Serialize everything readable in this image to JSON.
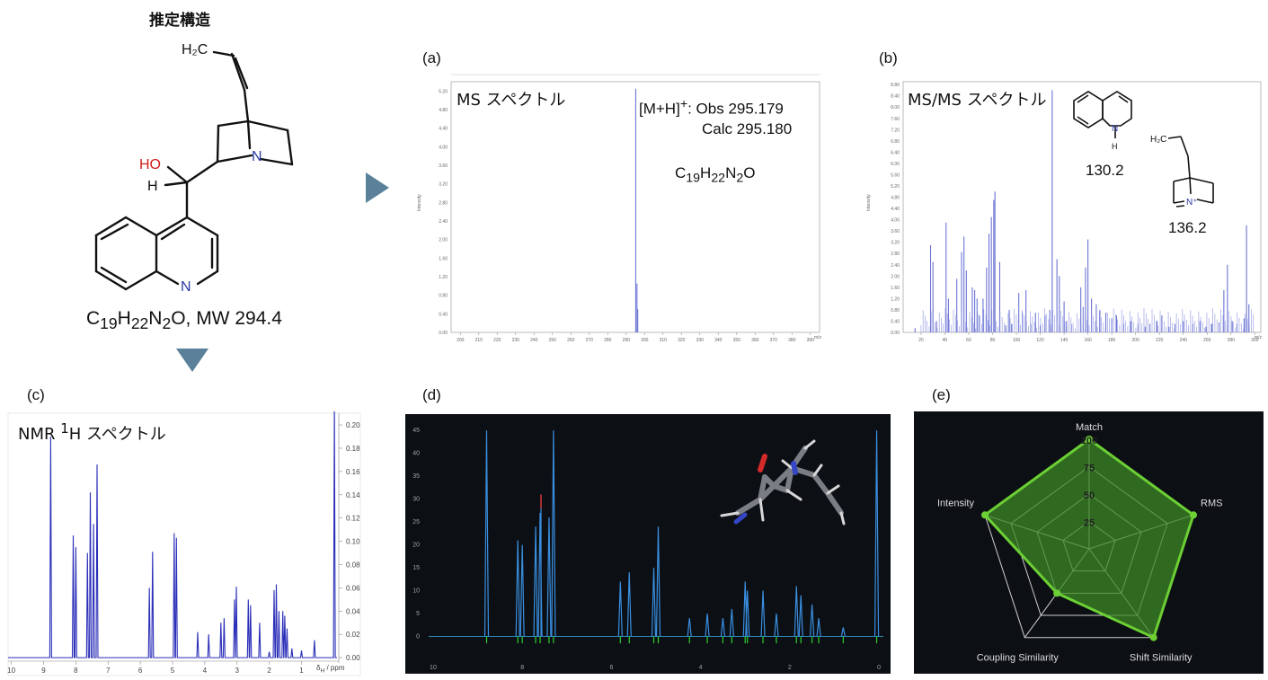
{
  "structure": {
    "title": "推定構造",
    "formula_html": "C<sub>19</sub>H<sub>22</sub>N<sub>2</sub>O, MW 294.4",
    "atoms": {
      "vinyl": "H₂C",
      "ho": "HO",
      "h": "H",
      "n_bicyclic": "N",
      "n_quinoline": "N"
    }
  },
  "panels": {
    "a": {
      "label": "(a)",
      "title": "MS スペクトル",
      "annotation_line1_html": "[M+H]<sup>+</sup>: Obs 295.179",
      "annotation_line2": "Calc 295.180",
      "formula_html": "C<sub>19</sub>H<sub>22</sub>N<sub>2</sub>O"
    },
    "b": {
      "label": "(b)",
      "title": "MS/MS スペクトル",
      "frag1": "130.2",
      "frag2": "136.2"
    },
    "c": {
      "label": "(c)",
      "title_html": "NMR <sup>1</sup>H スペクトル",
      "xaxis_unit": "δ<sub>H</sub> / ppm"
    },
    "d": {
      "label": "(d)"
    },
    "e": {
      "label": "(e)"
    }
  },
  "chart_data": [
    {
      "type": "bar",
      "name": "ms",
      "x": [
        294.5,
        295.2,
        295.9,
        296.3
      ],
      "values": [
        0.0,
        5.25,
        1.05,
        0.5
      ],
      "xticks": [
        200,
        210,
        220,
        230,
        240,
        250,
        260,
        270,
        280,
        290,
        300,
        310,
        320,
        330,
        340,
        350,
        360,
        370,
        380,
        390
      ],
      "xlim": [
        195,
        395
      ],
      "yticks": [
        "0.00",
        "0.40",
        "0.80",
        "1.20",
        "1.60",
        "2.00",
        "2.40",
        "2.80",
        "3.20",
        "3.60",
        "4.00",
        "4.40",
        "4.80",
        "5.20"
      ],
      "ylim": [
        0,
        5.4
      ],
      "ylabel": "Intensity",
      "xlabel": "m/z"
    },
    {
      "type": "bar",
      "name": "msms",
      "x": [
        15,
        28,
        30,
        33,
        41,
        43,
        50,
        54,
        56,
        58,
        63,
        65,
        67,
        69,
        72,
        75,
        77,
        79,
        81,
        82,
        86,
        91,
        94,
        96,
        102,
        105,
        108,
        112,
        116,
        120,
        124,
        128,
        130,
        134,
        136,
        140,
        142,
        146,
        154,
        156,
        158,
        160,
        163,
        167,
        170,
        175,
        180,
        184,
        190,
        196,
        202,
        208,
        212,
        218,
        222,
        228,
        233,
        240,
        248,
        254,
        259,
        264,
        270,
        274,
        277,
        281,
        285,
        291,
        293,
        295
      ],
      "values": [
        0.15,
        3.1,
        2.5,
        0.4,
        3.9,
        1.2,
        1.9,
        2.85,
        3.4,
        2.2,
        1.6,
        1.5,
        1.2,
        0.6,
        1.2,
        2.3,
        3.5,
        4.1,
        4.7,
        5.0,
        2.5,
        0.25,
        0.8,
        0.3,
        1.4,
        0.7,
        1.5,
        0.3,
        0.7,
        0.25,
        0.6,
        0.8,
        8.6,
        2.6,
        2.0,
        1.1,
        0.4,
        0.3,
        1.6,
        0.9,
        2.3,
        3.3,
        1.2,
        1.0,
        0.8,
        0.7,
        0.5,
        0.6,
        0.3,
        0.4,
        0.3,
        0.2,
        0.3,
        0.4,
        0.6,
        0.2,
        0.3,
        0.4,
        0.3,
        0.4,
        0.2,
        0.3,
        0.35,
        1.5,
        2.4,
        0.4,
        0.3,
        0.5,
        3.8,
        1.0
      ],
      "xticks": [
        20,
        40,
        60,
        80,
        100,
        120,
        140,
        160,
        180,
        200,
        220,
        240,
        260,
        280,
        300
      ],
      "xlim": [
        5,
        305
      ],
      "yticks": [
        "0.00",
        "0.40",
        "0.80",
        "1.20",
        "1.60",
        "2.00",
        "2.40",
        "2.80",
        "3.20",
        "3.60",
        "4.00",
        "4.40",
        "4.80",
        "5.20",
        "5.60",
        "6.00",
        "6.40",
        "6.80",
        "7.20",
        "7.60",
        "8.00",
        "8.40",
        "8.80"
      ],
      "ylim": [
        0,
        8.9
      ],
      "ylabel": "Intensity",
      "xlabel": "m/z"
    },
    {
      "type": "line",
      "name": "nmr",
      "peaks": [
        {
          "ppm": 8.78,
          "h": 0.19
        },
        {
          "ppm": 8.08,
          "h": 0.105
        },
        {
          "ppm": 8.0,
          "h": 0.095
        },
        {
          "ppm": 7.64,
          "h": 0.09
        },
        {
          "ppm": 7.55,
          "h": 0.142
        },
        {
          "ppm": 7.45,
          "h": 0.115
        },
        {
          "ppm": 7.34,
          "h": 0.166
        },
        {
          "ppm": 5.72,
          "h": 0.06
        },
        {
          "ppm": 5.62,
          "h": 0.091
        },
        {
          "ppm": 4.95,
          "h": 0.107
        },
        {
          "ppm": 4.88,
          "h": 0.103
        },
        {
          "ppm": 4.22,
          "h": 0.022
        },
        {
          "ppm": 3.88,
          "h": 0.02
        },
        {
          "ppm": 3.5,
          "h": 0.03
        },
        {
          "ppm": 3.4,
          "h": 0.034
        },
        {
          "ppm": 3.08,
          "h": 0.05
        },
        {
          "ppm": 3.02,
          "h": 0.061
        },
        {
          "ppm": 2.65,
          "h": 0.05
        },
        {
          "ppm": 2.58,
          "h": 0.045
        },
        {
          "ppm": 2.3,
          "h": 0.03
        },
        {
          "ppm": 2.0,
          "h": 0.005
        },
        {
          "ppm": 1.85,
          "h": 0.058
        },
        {
          "ppm": 1.78,
          "h": 0.063
        },
        {
          "ppm": 1.7,
          "h": 0.04
        },
        {
          "ppm": 1.58,
          "h": 0.04
        },
        {
          "ppm": 1.52,
          "h": 0.036
        },
        {
          "ppm": 1.45,
          "h": 0.025
        },
        {
          "ppm": 1.3,
          "h": 0.008
        },
        {
          "ppm": 1.0,
          "h": 0.006
        },
        {
          "ppm": 0.6,
          "h": 0.015
        },
        {
          "ppm": -0.02,
          "h": 0.22
        }
      ],
      "xticks": [
        10,
        9,
        8,
        7,
        6,
        5,
        4,
        3,
        2,
        1
      ],
      "xlim": [
        10.1,
        -0.1
      ],
      "yticks": [
        "0.00",
        "0.02",
        "0.04",
        "0.06",
        "0.08",
        "0.10",
        "0.12",
        "0.14",
        "0.16",
        "0.18",
        "0.20"
      ],
      "ylim": [
        -0.003,
        0.207
      ]
    },
    {
      "type": "line",
      "name": "nmr-predicted",
      "xticks": [
        10,
        8,
        6,
        4,
        2,
        0
      ],
      "yticks": [
        0,
        5,
        10,
        15,
        20,
        25,
        30,
        35,
        40,
        45
      ],
      "ylim": [
        -5,
        47
      ],
      "xlim": [
        10.1,
        -0.1
      ],
      "peaks_blue": [
        {
          "ppm": 8.8,
          "h": 45
        },
        {
          "ppm": 8.1,
          "h": 21
        },
        {
          "ppm": 8.0,
          "h": 20
        },
        {
          "ppm": 7.7,
          "h": 24
        },
        {
          "ppm": 7.6,
          "h": 27
        },
        {
          "ppm": 7.4,
          "h": 26
        },
        {
          "ppm": 7.3,
          "h": 45
        },
        {
          "ppm": 5.8,
          "h": 12
        },
        {
          "ppm": 5.6,
          "h": 14
        },
        {
          "ppm": 5.05,
          "h": 15
        },
        {
          "ppm": 4.95,
          "h": 24
        },
        {
          "ppm": 4.25,
          "h": 4
        },
        {
          "ppm": 3.85,
          "h": 5
        },
        {
          "ppm": 3.5,
          "h": 4
        },
        {
          "ppm": 3.3,
          "h": 6
        },
        {
          "ppm": 3.0,
          "h": 12
        },
        {
          "ppm": 2.95,
          "h": 10
        },
        {
          "ppm": 2.6,
          "h": 10
        },
        {
          "ppm": 2.3,
          "h": 5
        },
        {
          "ppm": 1.85,
          "h": 11
        },
        {
          "ppm": 1.75,
          "h": 9
        },
        {
          "ppm": 1.5,
          "h": 7
        },
        {
          "ppm": 1.35,
          "h": 4
        },
        {
          "ppm": 0.8,
          "h": 2
        },
        {
          "ppm": 0.05,
          "h": 45
        }
      ],
      "red_peak": {
        "ppm": 7.58,
        "h": 31
      }
    },
    {
      "type": "radar",
      "name": "scores",
      "axes": [
        "Match",
        "RMS",
        "Shift Similarity",
        "Coupling Similarity",
        "Intensity"
      ],
      "values": [
        100,
        100,
        100,
        50,
        100
      ],
      "ticks": [
        25,
        50,
        75,
        100
      ],
      "range": [
        0,
        100
      ]
    }
  ],
  "colors": {
    "ms_blue": "#6b74d4",
    "nmr_blue": "#2b2fb8",
    "dark_bg": "#0c0f14",
    "radar_fill": "#3c8a26",
    "radar_edge": "#6ccf34",
    "arrow": "#5a8199"
  }
}
